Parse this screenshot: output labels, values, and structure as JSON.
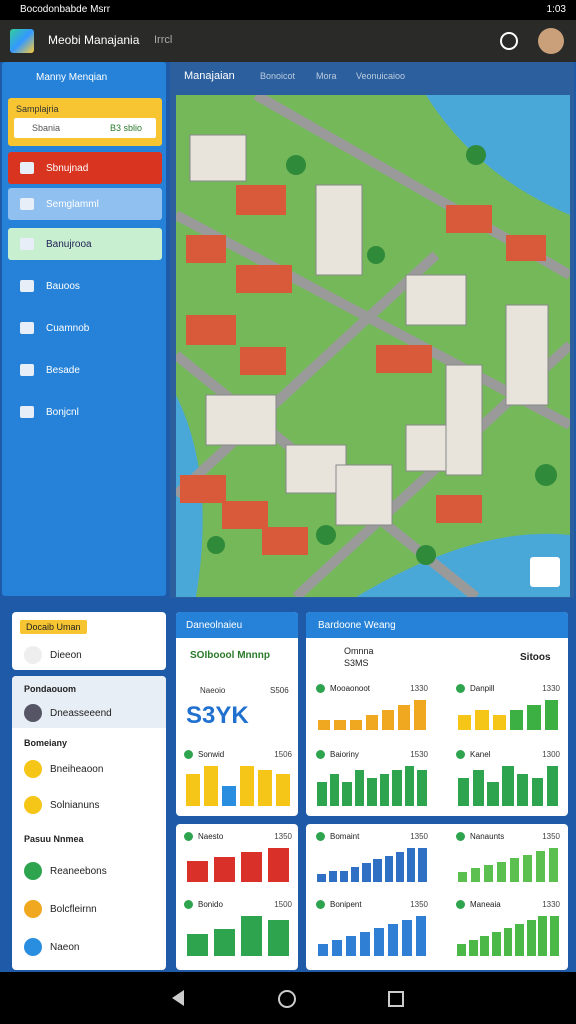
{
  "status": {
    "title": "Bocodonbabde Msrr",
    "time": "1:03"
  },
  "appbar": {
    "title": "Meobi Manajania",
    "subtitle": "Irrcl"
  },
  "sidebar": {
    "title": "Manny Menqian",
    "search_label": "Samplajria",
    "search_placeholder": "Sbania",
    "search_button": "B3 sblio",
    "items": [
      "Sbnujnad",
      "Semglamml",
      "Banujrooa",
      "Bauoos",
      "Cuamnob",
      "Besade",
      "Bonjcnl"
    ]
  },
  "map_header": {
    "title": "Manajaian",
    "tabs": [
      "Bonoicot",
      "Mora",
      "Veonuicaioo"
    ]
  },
  "lists": [
    {
      "title": "Docaib Uman",
      "items": [
        "Dieeon"
      ]
    },
    {
      "title": "Pondaouom",
      "items": [
        "Dneasseeend"
      ]
    },
    {
      "title": "Bomeiany",
      "items": [
        "Bneiheaoon",
        "Solnianuns"
      ]
    },
    {
      "title": "Pasuu Nnmea",
      "items": [
        "Reaneebons",
        "Bolcfleirnn",
        "Naeon"
      ]
    }
  ],
  "cards": [
    {
      "title": "Daneolnaieu",
      "heading": "SOIboool Mnnnp",
      "row_label": "Naeoio",
      "row_number": "S506",
      "big": "S3YK"
    },
    {
      "title": "Bardoone Weang",
      "heading": "Omnna",
      "sub": "S3MS",
      "badge": "Sitoos"
    }
  ],
  "charts": [
    {
      "label": "Sonwid",
      "number": "1506",
      "colors": [
        "#f5c518",
        "#f5c518",
        "#2a8ee0",
        "#f5c518",
        "#f5c518",
        "#f5c518"
      ],
      "values": [
        8,
        10,
        5,
        10,
        9,
        8
      ]
    },
    {
      "label": "Mooaonoot",
      "number": "1330",
      "color": "#f0a820",
      "values": [
        2,
        2,
        2,
        3,
        4,
        5,
        6
      ]
    },
    {
      "label": "Danpill",
      "number": "1330",
      "colors": [
        "#f5c518",
        "#f5c518",
        "#f5c518",
        "#3cb043",
        "#3cb043",
        "#3cb043"
      ],
      "values": [
        3,
        4,
        3,
        4,
        5,
        6
      ]
    },
    {
      "label": "Baioriny",
      "number": "1530",
      "color": "#2ea44f",
      "values": [
        6,
        8,
        6,
        9,
        7,
        8,
        9,
        10,
        9
      ]
    },
    {
      "label": "Kanel",
      "number": "1300",
      "color": "#2ea44f",
      "values": [
        7,
        9,
        6,
        10,
        8,
        7,
        10
      ]
    },
    {
      "label": "Naesto",
      "number": "1350",
      "color": "#d9302a",
      "values": [
        5,
        6,
        7,
        8
      ]
    },
    {
      "label": "Bonido",
      "number": "1500",
      "color": "#2ea44f",
      "values": [
        5,
        6,
        9,
        8
      ]
    },
    {
      "label": "Bomaint",
      "number": "1350",
      "color": "#2f6fc4",
      "values": [
        2,
        3,
        3,
        4,
        5,
        6,
        7,
        8,
        9,
        9
      ]
    },
    {
      "label": "Nanaunts",
      "number": "1350",
      "color": "#5cc050",
      "values": [
        3,
        4,
        5,
        6,
        7,
        8,
        9,
        10
      ]
    },
    {
      "label": "Bonipent",
      "number": "1350",
      "color": "#2f7fd4",
      "values": [
        3,
        4,
        5,
        6,
        7,
        8,
        9,
        10
      ]
    },
    {
      "label": "Maneaia",
      "number": "1330",
      "color": "#4cb848",
      "values": [
        3,
        4,
        5,
        6,
        7,
        8,
        9,
        10,
        10
      ]
    }
  ]
}
